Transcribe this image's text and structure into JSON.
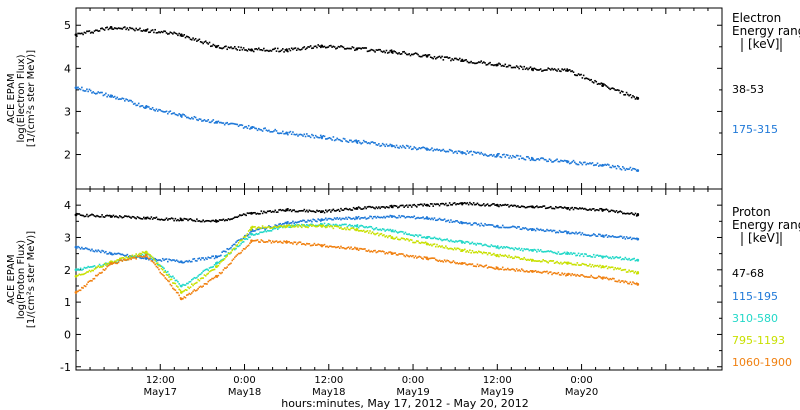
{
  "chart_data": [
    {
      "type": "scatter",
      "panel": "electron",
      "ylabel_lines": [
        "ACE EPAM",
        "log(Electron Flux)",
        "[1/(cm²s ster MeV)]"
      ],
      "ylim": [
        1.2,
        5.4
      ],
      "yticks": [
        "2",
        "3",
        "4",
        "5"
      ],
      "legend_title": [
        "Electron",
        "Energy range",
        "[keV]"
      ],
      "series": [
        {
          "name": "38-53",
          "color": "#000000",
          "x": [
            0,
            5,
            10,
            15,
            20,
            25,
            30,
            35,
            40,
            45,
            50,
            55,
            60,
            65,
            70,
            75,
            80
          ],
          "y": [
            4.78,
            4.95,
            4.88,
            4.78,
            4.5,
            4.43,
            4.42,
            4.52,
            4.45,
            4.38,
            4.28,
            4.18,
            4.08,
            3.98,
            3.95,
            3.6,
            3.3
          ]
        },
        {
          "name": "175-315",
          "color": "#1e78d8",
          "x": [
            0,
            5,
            10,
            15,
            20,
            25,
            30,
            35,
            40,
            45,
            50,
            55,
            60,
            65,
            70,
            75,
            80
          ],
          "y": [
            3.55,
            3.35,
            3.1,
            2.9,
            2.75,
            2.62,
            2.5,
            2.4,
            2.3,
            2.2,
            2.12,
            2.05,
            1.98,
            1.9,
            1.83,
            1.75,
            1.63
          ]
        }
      ]
    },
    {
      "type": "scatter",
      "panel": "proton",
      "ylabel_lines": [
        "ACE EPAM",
        "log(Proton Flux)",
        "[1/(cm²s ster MeV)]"
      ],
      "ylim": [
        -1.1,
        4.5
      ],
      "yticks": [
        "-1",
        "0",
        "1",
        "2",
        "3",
        "4"
      ],
      "legend_title": [
        "Proton",
        "Energy range",
        "[keV]"
      ],
      "series": [
        {
          "name": "47-68",
          "color": "#000000",
          "x": [
            0,
            5,
            10,
            15,
            20,
            25,
            30,
            35,
            40,
            45,
            50,
            55,
            60,
            65,
            70,
            75,
            80
          ],
          "y": [
            3.7,
            3.65,
            3.6,
            3.55,
            3.5,
            3.75,
            3.85,
            3.8,
            3.9,
            3.95,
            4.0,
            4.05,
            4.0,
            3.95,
            3.9,
            3.85,
            3.7
          ]
        },
        {
          "name": "115-195",
          "color": "#1e78d8",
          "x": [
            0,
            5,
            10,
            15,
            20,
            25,
            30,
            35,
            40,
            45,
            50,
            55,
            60,
            65,
            70,
            75,
            80
          ],
          "y": [
            2.7,
            2.5,
            2.35,
            2.25,
            2.4,
            3.2,
            3.45,
            3.55,
            3.6,
            3.65,
            3.6,
            3.45,
            3.35,
            3.25,
            3.15,
            3.05,
            2.95
          ]
        },
        {
          "name": "310-580",
          "color": "#22d8c8",
          "x": [
            0,
            5,
            10,
            15,
            20,
            25,
            30,
            35,
            40,
            45,
            50,
            55,
            60,
            65,
            70,
            75,
            80
          ],
          "y": [
            2.0,
            2.2,
            2.5,
            1.5,
            2.2,
            3.1,
            3.35,
            3.4,
            3.35,
            3.2,
            3.0,
            2.85,
            2.7,
            2.6,
            2.5,
            2.4,
            2.3
          ]
        },
        {
          "name": "795-1193",
          "color": "#c8e000",
          "x": [
            0,
            5,
            10,
            15,
            20,
            25,
            30,
            35,
            40,
            45,
            50,
            55,
            60,
            65,
            70,
            75,
            80
          ],
          "y": [
            1.8,
            2.25,
            2.55,
            1.3,
            2.1,
            3.3,
            3.35,
            3.35,
            3.25,
            3.0,
            2.8,
            2.6,
            2.45,
            2.3,
            2.2,
            2.1,
            1.9
          ]
        },
        {
          "name": "1060-1900",
          "color": "#f08010",
          "x": [
            0,
            5,
            10,
            15,
            20,
            25,
            30,
            35,
            40,
            45,
            50,
            55,
            60,
            65,
            70,
            75,
            80
          ],
          "y": [
            1.3,
            2.2,
            2.45,
            1.1,
            1.8,
            2.9,
            2.85,
            2.75,
            2.65,
            2.5,
            2.35,
            2.2,
            2.05,
            1.95,
            1.85,
            1.75,
            1.55
          ]
        }
      ]
    }
  ],
  "xaxis": {
    "xlim": [
      0,
      92
    ],
    "ticks": [
      {
        "x": 12,
        "time": "12:00",
        "date": "May17"
      },
      {
        "x": 24,
        "time": "0:00",
        "date": "May18"
      },
      {
        "x": 36,
        "time": "12:00",
        "date": "May18"
      },
      {
        "x": 48,
        "time": "0:00",
        "date": "May19"
      },
      {
        "x": 60,
        "time": "12:00",
        "date": "May19"
      },
      {
        "x": 72,
        "time": "0:00",
        "date": "May20"
      }
    ],
    "minor_step": 2,
    "label": "hours:minutes, May 17, 2012 - May 20, 2012"
  }
}
